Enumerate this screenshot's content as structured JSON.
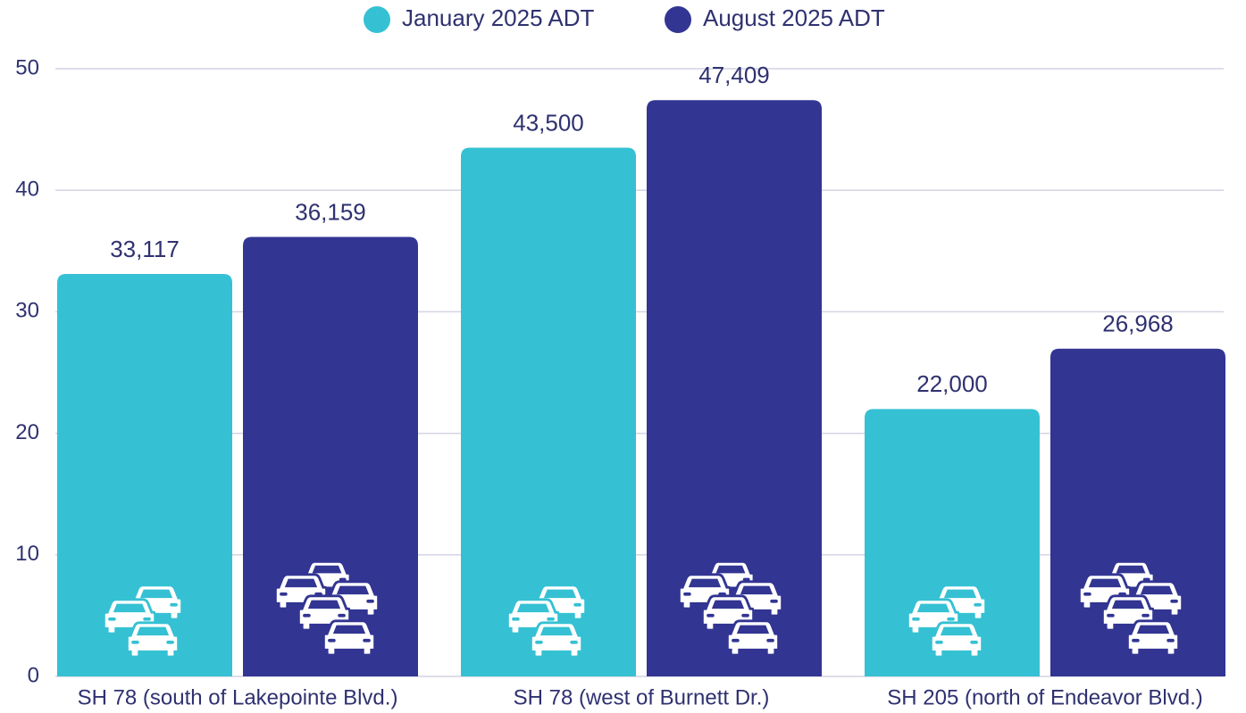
{
  "chart_data": {
    "type": "bar",
    "categories": [
      "SH 78 (south of Lakepointe Blvd.)",
      "SH 78 (west of Burnett Dr.)",
      "SH 205 (north of Endeavor Blvd.)"
    ],
    "series": [
      {
        "name": "January 2025 ADT",
        "color": "#35c1d3",
        "values": [
          33.117,
          43.5,
          22.0
        ],
        "value_labels": [
          "33,117",
          "43,500",
          "22,000"
        ]
      },
      {
        "name": "August 2025 ADT",
        "color": "#323592",
        "values": [
          36.159,
          47.409,
          26.968
        ],
        "value_labels": [
          "36,159",
          "47,409",
          "26,968"
        ]
      }
    ],
    "ylim": [
      0,
      50
    ],
    "yticks": [
      0,
      10,
      20,
      30,
      40,
      50
    ],
    "grid": true,
    "legend": "top"
  }
}
